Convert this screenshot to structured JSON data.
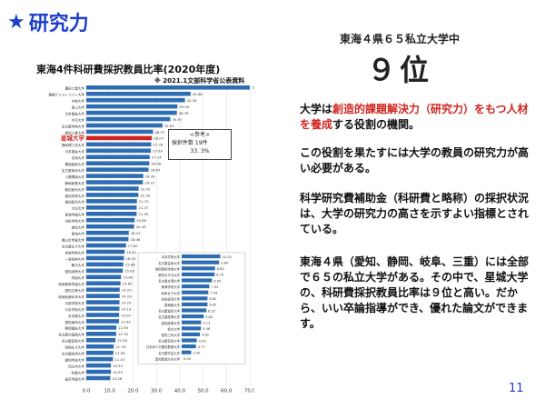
{
  "slide": {
    "heading": "研究力",
    "page_number": "11"
  },
  "chart_info": {
    "title": "東海4件科研費採択教員比率(2020年度)",
    "source": "※ 2021.1文部科学省公表資料",
    "highlight_label": "星城大学",
    "highlight_tag": "星城大学9位",
    "inset_title": "<参考>",
    "inset_line1": "採択件数  19件",
    "inset_line2": "33. 3%"
  },
  "chart_data": {
    "type": "bar",
    "orientation": "horizontal",
    "title": "東海4件科研費採択教員比率(2020年度)",
    "xlim": [
      0,
      70
    ],
    "xticks": [
      "0.0",
      "10.0",
      "20.0",
      "30.0",
      "40.0",
      "50.0",
      "60.0",
      "70.0"
    ],
    "highlight_index": 8,
    "main_bars": [
      {
        "label": "豊田工業大学",
        "value": 72.0
      },
      {
        "label": "聖隷クリストファー大学",
        "value": 44.66
      },
      {
        "label": "中部大学",
        "value": 42.26
      },
      {
        "label": "南山大学",
        "value": 39.0
      },
      {
        "label": "日本福祉大学",
        "value": 38.78
      },
      {
        "label": "中京大学",
        "value": 35.97
      },
      {
        "label": "名古屋学院大学",
        "value": 32.63
      },
      {
        "label": "愛知工業大学",
        "value": 28.57
      },
      {
        "label": "星城大学",
        "value": 28.07
      },
      {
        "label": "静岡理工科大学",
        "value": 27.78
      },
      {
        "label": "日本福祉大学",
        "value": 27.63
      },
      {
        "label": "名城大学",
        "value": 27.14
      },
      {
        "label": "豊橋創造大学",
        "value": 26.98
      },
      {
        "label": "名古屋商科大学",
        "value": 26.67
      },
      {
        "label": "人間環境大学",
        "value": 24.39
      },
      {
        "label": "静岡産業大学",
        "value": 24.23
      },
      {
        "label": "藤田医科大学",
        "value": 22.41
      },
      {
        "label": "愛知学院大学",
        "value": 22.3
      },
      {
        "label": "愛知医科大学",
        "value": 21.7
      },
      {
        "label": "大同大学",
        "value": 21.57
      },
      {
        "label": "東海学園大学",
        "value": 21.55
      },
      {
        "label": "浜松学院大学",
        "value": 20.69
      },
      {
        "label": "愛知大学",
        "value": 20.45
      },
      {
        "label": "東海大学",
        "value": 18.21
      },
      {
        "label": "椙山女学園大学",
        "value": 18.06
      },
      {
        "label": "名古屋女子大学",
        "value": 17.0
      },
      {
        "label": "金城学院大学",
        "value": 16.42
      },
      {
        "label": "一宮研伸大学",
        "value": 16.13
      },
      {
        "label": "朝日大学",
        "value": 15.86
      },
      {
        "label": "愛知淑徳大学",
        "value": 15.63
      },
      {
        "label": "同朋大学",
        "value": 14.89
      },
      {
        "label": "岐阜聖徳学園大学",
        "value": 14.65
      },
      {
        "label": "愛知文教大学",
        "value": 14.29
      },
      {
        "label": "岐阜医療科学大学",
        "value": 14.29
      },
      {
        "label": "中部学院大学",
        "value": 14.2
      },
      {
        "label": "中京学院大学",
        "value": 14.19
      },
      {
        "label": "至学館大学",
        "value": 14.04
      },
      {
        "label": "愛知東邦大学",
        "value": 13.99
      },
      {
        "label": "静岡福祉大学",
        "value": 12.9
      },
      {
        "label": "名古屋外国語大学",
        "value": 12.78
      },
      {
        "label": "名古屋音楽大学",
        "value": 12.5
      },
      {
        "label": "岡崎女子大学",
        "value": 11.76
      },
      {
        "label": "名古屋経済大学",
        "value": 11.58
      },
      {
        "label": "愛知学泉大学",
        "value": 11.43
      },
      {
        "label": "四日市大学",
        "value": 10.53
      },
      {
        "label": "鈴鹿大学",
        "value": 10.53
      },
      {
        "label": "桜花学園大学",
        "value": 10.26
      }
    ],
    "inset_bars": [
      {
        "label": "中京学院大学",
        "value": 10.2
      },
      {
        "label": "名古屋芸術大学",
        "value": 9.89
      },
      {
        "label": "静岡英和学院大学",
        "value": 8.82
      },
      {
        "label": "愛知みずほ大学",
        "value": 8.7
      },
      {
        "label": "名古屋文理大学",
        "value": 8.0
      },
      {
        "label": "東海学院大学",
        "value": 7.32
      },
      {
        "label": "岐阜女子大学",
        "value": 7.04
      },
      {
        "label": "岐阜経済大学",
        "value": 6.82
      },
      {
        "label": "皇學館大学",
        "value": 6.82
      },
      {
        "label": "名古屋造形大学",
        "value": 6.52
      },
      {
        "label": "名古屋産業大学",
        "value": 5.83
      },
      {
        "label": "愛知産業大学",
        "value": 5.13
      },
      {
        "label": "修文大学",
        "value": 5.08
      },
      {
        "label": "愛知工科大学",
        "value": 4.82
      },
      {
        "label": "名古屋芸術大学",
        "value": 4.0
      },
      {
        "label": "日本赤十字豊田看護大学",
        "value": 3.77
      },
      {
        "label": "名古屋学芸大学",
        "value": 2.5
      },
      {
        "label": "愛知新城大谷大学",
        "value": 0.0
      }
    ]
  },
  "right_panel": {
    "rank_sub": "東海４県６５私立大学中",
    "rank_big": "９位",
    "p1_a": "大学は",
    "p1_b": "創造的課題解決力（研究力）をもつ人材を養成",
    "p1_c": "する役割の機関。",
    "p2": "この役割を果たすには大学の教員の研究力が高い必要がある。",
    "p3": "科学研究費補助金（科研費と略称）の採択状況は、大学の研究力の高さを示すよい指標とされている。",
    "p4": "東海４県（愛知、静岡、岐阜、三重）には全部で６５の私立大学がある。その中で、星城大学の、科研費採択教員比率は９位と高い。だから、いい卒論指導ができ、優れた論文ができます。"
  }
}
